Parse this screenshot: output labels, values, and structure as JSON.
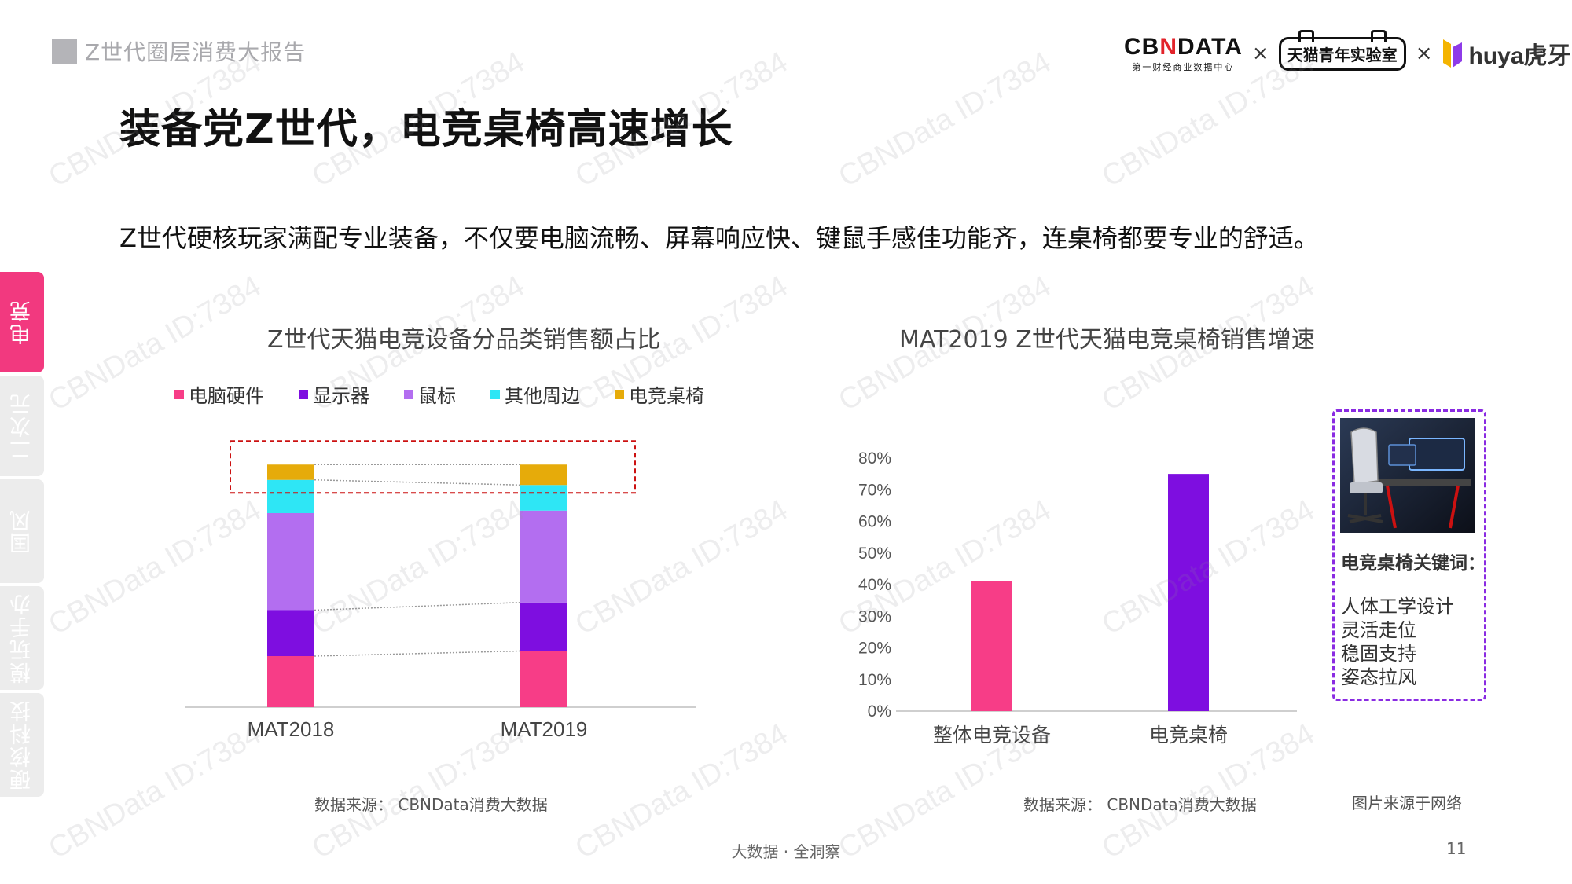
{
  "header": {
    "report_tag": "Z世代圈层消费大报告",
    "title": "装备党Z世代，电竞桌椅高速增长",
    "subtitle": "Z世代硬核玩家满配专业装备，不仅要电脑流畅、屏幕响应快、键鼠手感佳功能齐，连桌椅都要专业的舒适。"
  },
  "logos": {
    "cbndata_main": "CB DATA",
    "cbndata_sub": "第一财经商业数据中心",
    "times_sign": "×",
    "tmall": "天猫青年实验室",
    "huya": "huya虎牙"
  },
  "side_tabs": [
    {
      "label": "电竞",
      "active": true
    },
    {
      "label": "二次元",
      "active": false
    },
    {
      "label": "国风",
      "active": false
    },
    {
      "label": "模玩手办",
      "active": false
    },
    {
      "label": "硬核科技",
      "active": false
    }
  ],
  "chart_data": [
    {
      "type": "bar",
      "stacked": true,
      "title": "Z世代天猫电竞设备分品类销售额占比",
      "categories": [
        "MAT2018",
        "MAT2019"
      ],
      "series": [
        {
          "name": "电脑硬件",
          "color": "#f73d87",
          "values": [
            0.2,
            0.22
          ]
        },
        {
          "name": "显示器",
          "color": "#7e0ee0",
          "values": [
            0.18,
            0.19
          ]
        },
        {
          "name": "鼠标",
          "color": "#b36ef0",
          "values": [
            0.38,
            0.36
          ]
        },
        {
          "name": "其他周边",
          "color": "#2ee6f5",
          "values": [
            0.13,
            0.1
          ]
        },
        {
          "name": "电竞桌椅",
          "color": "#e6ab0a",
          "values": [
            0.06,
            0.08
          ]
        }
      ],
      "ylim": [
        0,
        1
      ],
      "legend": "top",
      "grid": false,
      "highlight": "电竞桌椅"
    },
    {
      "type": "bar",
      "title": "MAT2019 Z世代天猫电竞桌椅销售增速",
      "categories": [
        "整体电竞设备",
        "电竞桌椅"
      ],
      "values": [
        41,
        75
      ],
      "colors": [
        "#f73d87",
        "#7e0ee0"
      ],
      "ylim": [
        0,
        80
      ],
      "yticks": [
        "0%",
        "10%",
        "20%",
        "30%",
        "40%",
        "50%",
        "60%",
        "70%",
        "80%"
      ],
      "grid": false
    }
  ],
  "sources": {
    "left": "数据来源： CBNData消费大数据",
    "right": "数据来源： CBNData消费大数据",
    "image": "图片来源于网络"
  },
  "keywords": {
    "title": "电竞桌椅关键词：",
    "items": [
      "人体工学设计",
      "灵活走位",
      "稳固支持",
      "姿态拉风"
    ]
  },
  "footer": {
    "slogan": "大数据 · 全洞察",
    "page": "11"
  },
  "watermark": "CBNData ID:7384"
}
